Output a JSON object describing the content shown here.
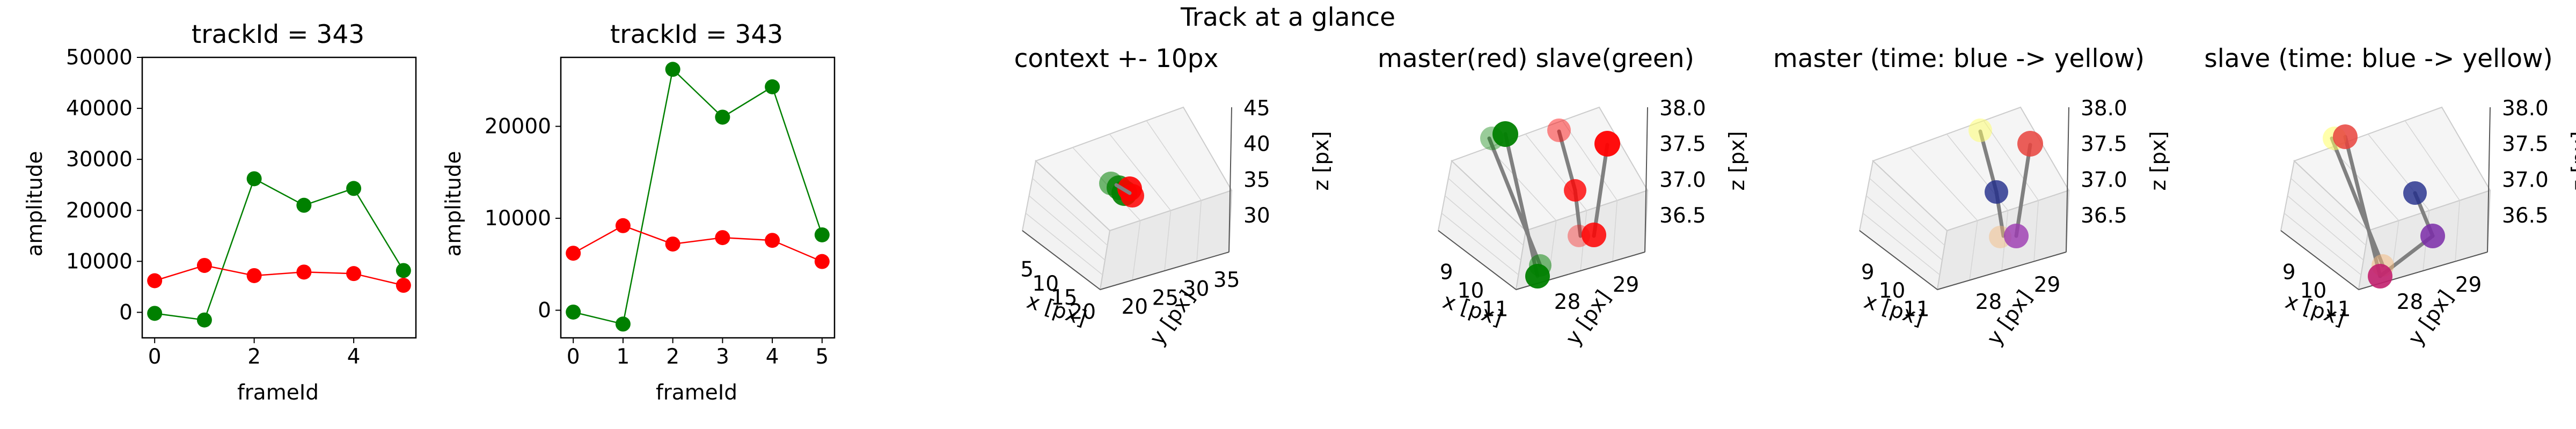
{
  "suptitle": "Track at a glance",
  "colors": {
    "green": "#008000",
    "red": "#ff0000",
    "grey": "#808080",
    "pane": "#f2f2f2",
    "pane_line": "#d5d5d5"
  },
  "chart_data": [
    {
      "type": "line",
      "title": "trackId = 343",
      "xlabel": "frameId",
      "ylabel": "amplitude",
      "xlim": [
        -0.25,
        5.25
      ],
      "ylim": [
        -5000,
        50000
      ],
      "xticks": [
        0,
        2,
        4
      ],
      "yticks": [
        0,
        10000,
        20000,
        30000,
        40000,
        50000
      ],
      "x": [
        0,
        1,
        2,
        3,
        4,
        5
      ],
      "series": [
        {
          "color": "#008000",
          "values": [
            -200,
            -1500,
            26200,
            21000,
            24300,
            8200
          ]
        },
        {
          "color": "#ff0000",
          "values": [
            6200,
            9200,
            7200,
            7900,
            7600,
            5300
          ]
        }
      ]
    },
    {
      "type": "line",
      "title": "trackId = 343",
      "xlabel": "frameId",
      "ylabel": "amplitude",
      "xlim": [
        -0.25,
        5.25
      ],
      "ylim": [
        -3000,
        27500
      ],
      "xticks": [
        0,
        1,
        2,
        3,
        4,
        5
      ],
      "yticks": [
        0,
        10000,
        20000
      ],
      "x": [
        0,
        1,
        2,
        3,
        4,
        5
      ],
      "series": [
        {
          "color": "#008000",
          "values": [
            -200,
            -1500,
            26200,
            21000,
            24300,
            8200
          ]
        },
        {
          "color": "#ff0000",
          "values": [
            6200,
            9200,
            7200,
            7900,
            7600,
            5300
          ]
        }
      ]
    },
    {
      "type": "scatter",
      "projection": "3d",
      "title": "context +- 10px",
      "xlabel": "x [px]",
      "ylabel": "y [px]",
      "zlabel": "z [px]",
      "xticks": [
        "5",
        "10",
        "15",
        "20"
      ],
      "yticks": [
        "20",
        "25",
        "30",
        "35"
      ],
      "zticks": [
        "30",
        "35",
        "40",
        "45"
      ],
      "points": [
        {
          "x": 10,
          "y": 28.5,
          "z": 37.2,
          "color": "#008000"
        },
        {
          "x": 11,
          "y": 28.2,
          "z": 36.6,
          "color": "#008000"
        },
        {
          "x": 11,
          "y": 28.5,
          "z": 37.0,
          "color": "#ff0000"
        },
        {
          "x": 11,
          "y": 28.6,
          "z": 36.8,
          "color": "#ff0000"
        },
        {
          "x": 10,
          "y": 29.0,
          "z": 37.3,
          "color": "#008000"
        }
      ]
    },
    {
      "type": "scatter",
      "projection": "3d",
      "title": "master(red) slave(green)",
      "xlabel": "x [px]",
      "ylabel": "y [px]",
      "zlabel": "z [px]",
      "xticks": [
        "9",
        "10",
        "11"
      ],
      "yticks": [
        "28",
        "29"
      ],
      "zticks": [
        "36.5",
        "37.0",
        "37.5",
        "38.0"
      ],
      "points": [
        {
          "label": "master",
          "color": "#ff0000",
          "coords": [
            [
              10.6,
              28.9,
              38.0
            ],
            [
              11.0,
              29.1,
              37.9
            ],
            [
              10.9,
              28.6,
              37.0
            ],
            [
              11.1,
              28.4,
              36.5
            ],
            [
              11.3,
              28.3,
              36.5
            ]
          ]
        },
        {
          "label": "slave",
          "color": "#008000",
          "coords": [
            [
              9.1,
              29.3,
              38.0
            ],
            [
              9.4,
              29.2,
              38.0
            ],
            [
              10.3,
              28.2,
              36.0
            ],
            [
              10.4,
              28.0,
              35.9
            ]
          ]
        }
      ]
    },
    {
      "type": "scatter",
      "projection": "3d",
      "title": "master (time: blue -> yellow)",
      "xlabel": "x [px]",
      "ylabel": "y [px]",
      "zlabel": "z [px]",
      "xticks": [
        "9",
        "10",
        "11"
      ],
      "yticks": [
        "28",
        "29"
      ],
      "zticks": [
        "36.5",
        "37.0",
        "37.5",
        "38.0"
      ]
    },
    {
      "type": "scatter",
      "projection": "3d",
      "title": "slave (time: blue -> yellow)",
      "xlabel": "x [px]",
      "ylabel": "y [px]",
      "zlabel": "z [px]",
      "xticks": [
        "9",
        "10",
        "11"
      ],
      "yticks": [
        "28",
        "29"
      ],
      "zticks": [
        "36.5",
        "37.0",
        "37.5",
        "38.0"
      ]
    }
  ]
}
